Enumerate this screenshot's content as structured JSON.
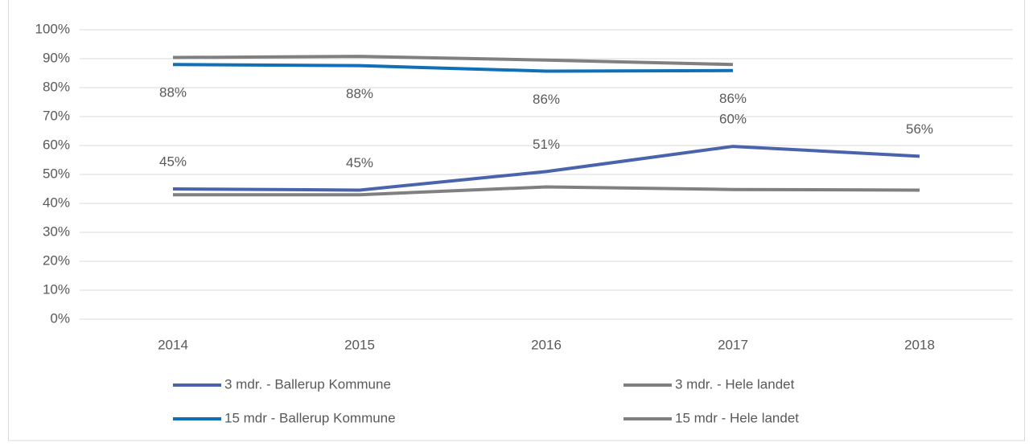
{
  "chart_data": {
    "type": "line",
    "categories": [
      "2014",
      "2015",
      "2016",
      "2017",
      "2018"
    ],
    "series": [
      {
        "name": "3 mdr. - Ballerup Kommune",
        "color": "#4a63ad",
        "values": [
          45,
          44.6,
          51,
          59.7,
          56.3
        ],
        "value_labels": [
          "45%",
          "45%",
          "51%",
          "60%",
          "56%"
        ],
        "label_position": "above"
      },
      {
        "name": "3 mdr. - Hele landet",
        "color": "#808080",
        "values": [
          43,
          43,
          45.7,
          44.8,
          44.6
        ]
      },
      {
        "name": "15 mdr - Ballerup Kommune",
        "color": "#0f70b8",
        "values": [
          88,
          87.6,
          85.7,
          85.9,
          null
        ],
        "value_labels": [
          "88%",
          "88%",
          "86%",
          "86%",
          null
        ],
        "label_position": "below"
      },
      {
        "name": "15 mdr - Hele landet",
        "color": "#808080",
        "values": [
          90.4,
          90.8,
          89.5,
          88,
          null
        ]
      }
    ],
    "ylim": [
      0,
      100
    ],
    "yticks": [
      {
        "value": 0,
        "label": "0%"
      },
      {
        "value": 10,
        "label": "10%"
      },
      {
        "value": 20,
        "label": "20%"
      },
      {
        "value": 30,
        "label": "30%"
      },
      {
        "value": 40,
        "label": "40%"
      },
      {
        "value": 50,
        "label": "50%"
      },
      {
        "value": 60,
        "label": "60%"
      },
      {
        "value": 70,
        "label": "70%"
      },
      {
        "value": 80,
        "label": "80%"
      },
      {
        "value": 90,
        "label": "90%"
      },
      {
        "value": 100,
        "label": "100%"
      }
    ],
    "grid": true
  }
}
